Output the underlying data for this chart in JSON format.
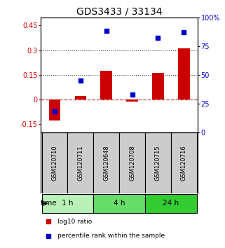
{
  "title": "GDS3433 / 33134",
  "samples": [
    "GSM120710",
    "GSM120711",
    "GSM120648",
    "GSM120708",
    "GSM120715",
    "GSM120716"
  ],
  "log10_ratio": [
    -0.13,
    0.02,
    0.175,
    -0.015,
    0.16,
    0.31
  ],
  "percentile_rank": [
    18,
    45,
    88,
    33,
    82,
    87
  ],
  "time_groups": [
    {
      "label": "1 h",
      "indices": [
        0,
        1
      ],
      "color": "#b8f0b8"
    },
    {
      "label": "4 h",
      "indices": [
        2,
        3
      ],
      "color": "#66dd66"
    },
    {
      "label": "24 h",
      "indices": [
        4,
        5
      ],
      "color": "#33cc33"
    }
  ],
  "bar_color": "#cc0000",
  "scatter_color": "#0000cc",
  "ylim_left": [
    -0.2,
    0.5
  ],
  "ylim_right": [
    0,
    100
  ],
  "yticks_left": [
    -0.15,
    0.0,
    0.15,
    0.3,
    0.45
  ],
  "ytick_labels_left": [
    "-0.15",
    "0",
    "0.15",
    "0.3",
    "0.45"
  ],
  "yticks_right": [
    0,
    25,
    50,
    75,
    100
  ],
  "ytick_labels_right": [
    "0",
    "25",
    "50",
    "75",
    "100%"
  ],
  "hlines": [
    0.15,
    0.3
  ],
  "hline_zero_color": "#cc4444",
  "hline_dot_color": "#333333",
  "bg_color": "#ffffff",
  "label_color_left": "#cc0000",
  "label_color_right": "#0000cc",
  "sample_box_color": "#cccccc",
  "legend_items": [
    {
      "label": "log10 ratio",
      "color": "#cc0000"
    },
    {
      "label": "percentile rank within the sample",
      "color": "#0000cc"
    }
  ],
  "time_label": "time",
  "title_fontsize": 10,
  "tick_fontsize": 7,
  "bar_width": 0.45,
  "scatter_size": 22
}
